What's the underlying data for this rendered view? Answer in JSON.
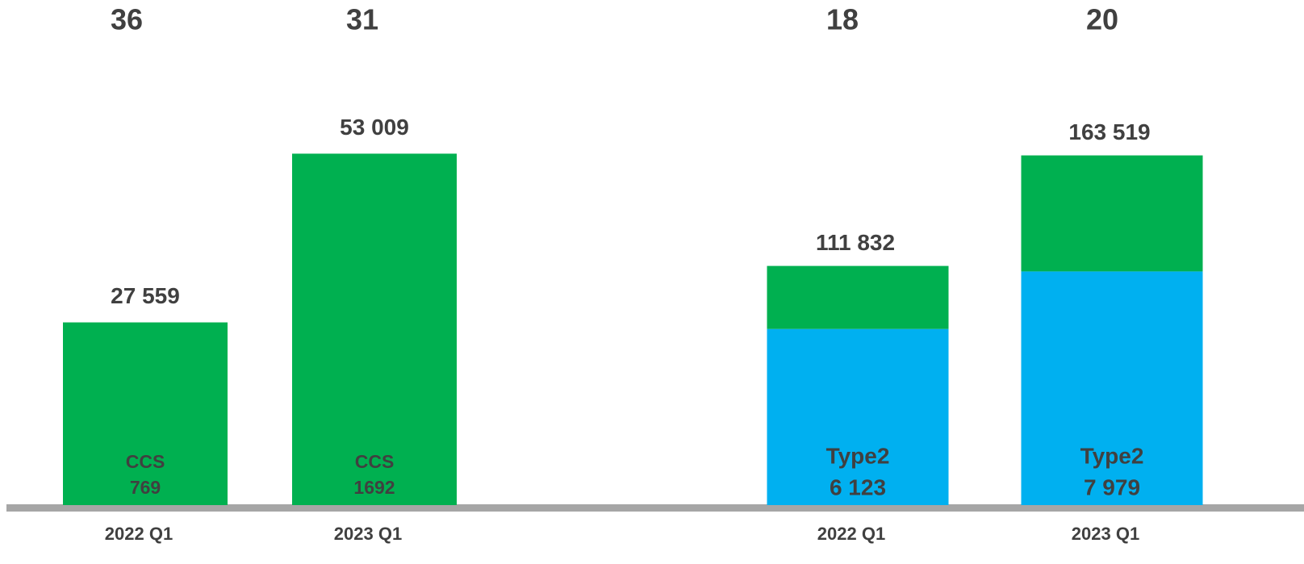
{
  "chart_data": [
    {
      "type": "bar",
      "categories": [
        "2022 Q1",
        "2023 Q1"
      ],
      "values": [
        27559,
        53009
      ],
      "value_labels": [
        "27 559",
        "53 009"
      ],
      "color": "#00b050",
      "ylim": [
        0,
        60000
      ],
      "top_labels": [
        36,
        31
      ],
      "segment_label": "CCS",
      "segment_counts": [
        769,
        1692
      ]
    },
    {
      "type": "stacked_bar",
      "categories": [
        "2022 Q1",
        "2023 Q1"
      ],
      "series": [
        {
          "name": "Type2",
          "color": "#00b0f0",
          "values": [
            82360,
            109260
          ],
          "counts": [
            6123,
            7979
          ],
          "count_labels": [
            "6 123",
            "7 979"
          ]
        },
        {
          "color": "#00b050",
          "values": [
            29472,
            54259
          ]
        }
      ],
      "totals": [
        111832,
        163519
      ],
      "total_labels": [
        "111 832",
        "163 519"
      ],
      "ylim": [
        0,
        186000
      ],
      "top_labels": [
        18,
        20
      ]
    }
  ]
}
